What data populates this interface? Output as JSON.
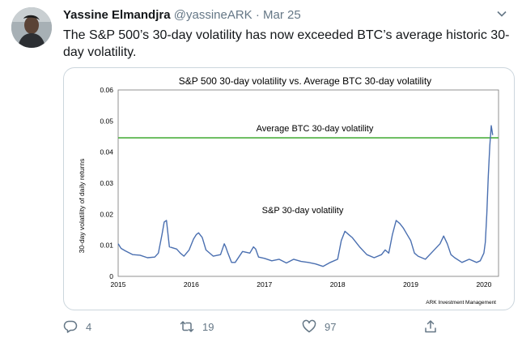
{
  "tweet": {
    "author_name": "Yassine Elmandjra",
    "handle": "@yassineARK",
    "separator": "·",
    "date": "Mar 25",
    "text": "The S&P 500’s 30-day volatility has now exceeded BTC’s average historic 30-day volatility."
  },
  "actions": {
    "replies": "4",
    "retweets": "19",
    "likes": "97"
  },
  "colors": {
    "text_primary": "#14171a",
    "text_secondary": "#657786",
    "border": "#ccd6dd"
  },
  "icons": {
    "reply": "reply-icon",
    "retweet": "retweet-icon",
    "like": "heart-icon",
    "share": "share-icon",
    "menu": "chevron-down-icon"
  },
  "chart_data": {
    "type": "line",
    "title": "S&P 500 30-day volatility vs. Average BTC 30-day volatility",
    "ylabel": "30-day volatility of daily returns",
    "xlabel": "",
    "xlim": [
      2015,
      2020.2
    ],
    "ylim": [
      0,
      0.06
    ],
    "grid": false,
    "y_ticks": [
      "0",
      "0.01",
      "0.02",
      "0.03",
      "0.04",
      "0.05",
      "0.06"
    ],
    "x_ticks": [
      "2015",
      "2016",
      "2017",
      "2018",
      "2019",
      "2020"
    ],
    "source": "ARK Investment Management",
    "series": [
      {
        "name": "Average BTC 30-day volatility",
        "color": "#4caf3f",
        "kind": "hline",
        "value": 0.0446
      },
      {
        "name": "S&P 30-day volatility",
        "color": "#4a6fb0",
        "x": [
          2015.0,
          2015.04,
          2015.1,
          2015.2,
          2015.3,
          2015.4,
          2015.5,
          2015.55,
          2015.6,
          2015.63,
          2015.66,
          2015.7,
          2015.8,
          2015.85,
          2015.9,
          2015.97,
          2016.03,
          2016.07,
          2016.1,
          2016.15,
          2016.2,
          2016.3,
          2016.4,
          2016.45,
          2016.47,
          2016.5,
          2016.55,
          2016.6,
          2016.7,
          2016.8,
          2016.85,
          2016.88,
          2016.92,
          2017.0,
          2017.1,
          2017.2,
          2017.3,
          2017.4,
          2017.5,
          2017.6,
          2017.7,
          2017.8,
          2017.9,
          2018.0,
          2018.05,
          2018.1,
          2018.15,
          2018.2,
          2018.3,
          2018.4,
          2018.5,
          2018.6,
          2018.65,
          2018.7,
          2018.75,
          2018.8,
          2018.85,
          2018.9,
          2018.95,
          2019.0,
          2019.05,
          2019.1,
          2019.2,
          2019.3,
          2019.4,
          2019.45,
          2019.5,
          2019.55,
          2019.6,
          2019.7,
          2019.8,
          2019.9,
          2019.95,
          2020.0,
          2020.02,
          2020.04,
          2020.06,
          2020.08,
          2020.1,
          2020.12
        ],
        "y": [
          0.0105,
          0.009,
          0.0082,
          0.007,
          0.0068,
          0.006,
          0.0062,
          0.0075,
          0.0135,
          0.0175,
          0.018,
          0.0095,
          0.0088,
          0.0075,
          0.0065,
          0.0085,
          0.012,
          0.0135,
          0.014,
          0.0125,
          0.0085,
          0.0065,
          0.007,
          0.0105,
          0.0095,
          0.0075,
          0.0045,
          0.0045,
          0.008,
          0.0075,
          0.0095,
          0.0088,
          0.0062,
          0.0058,
          0.005,
          0.0055,
          0.0043,
          0.0055,
          0.0048,
          0.0045,
          0.004,
          0.0032,
          0.0045,
          0.0055,
          0.0115,
          0.0145,
          0.0135,
          0.0125,
          0.0095,
          0.007,
          0.006,
          0.007,
          0.0085,
          0.0075,
          0.0135,
          0.018,
          0.017,
          0.0155,
          0.0135,
          0.0115,
          0.0075,
          0.0065,
          0.0055,
          0.008,
          0.0105,
          0.013,
          0.0105,
          0.007,
          0.006,
          0.0045,
          0.0055,
          0.0045,
          0.005,
          0.0075,
          0.011,
          0.02,
          0.032,
          0.042,
          0.0485,
          0.0455
        ]
      }
    ],
    "annotations": [
      "Average BTC 30-day volatility",
      "S&P 30-day volatility"
    ]
  }
}
